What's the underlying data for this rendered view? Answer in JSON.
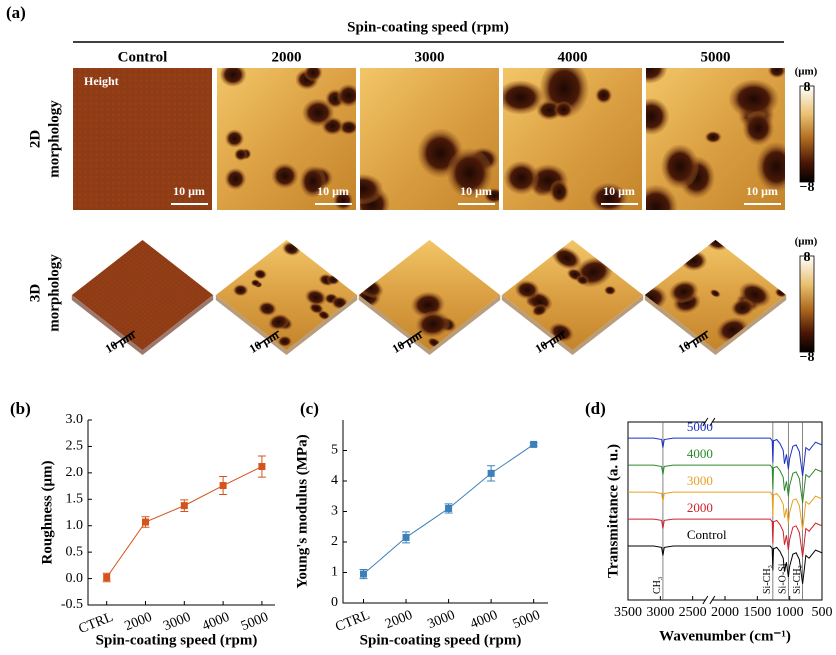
{
  "panel_a": {
    "label": "(a)",
    "title": "Spin-coating speed (rpm)",
    "columns": [
      "Control",
      "2000",
      "3000",
      "4000",
      "5000"
    ],
    "rows": [
      [
        "2D",
        "morphology"
      ],
      [
        "3D",
        "morphology"
      ]
    ],
    "image_label": "Height",
    "scale_bar": "10 μm",
    "colorbar": {
      "unit": "(μm)",
      "lim": [
        -8,
        8
      ],
      "ticks": [
        8,
        {
          "value": -8,
          "label": "−8"
        }
      ]
    }
  },
  "chart_data": [
    {
      "type": "line",
      "panel_label": "(b)",
      "ylabel": "Roughness (μm)",
      "xlabel": "Spin-coating speed (rpm)",
      "categories": [
        "CTRL",
        "2000",
        "3000",
        "4000",
        "5000"
      ],
      "series": [
        {
          "color": "#d4541c",
          "values": [
            0.02,
            1.07,
            1.38,
            1.76,
            2.12
          ],
          "errors": [
            0.08,
            0.1,
            0.11,
            0.17,
            0.2
          ]
        }
      ],
      "ylim": [
        -0.5,
        3.0
      ],
      "yticks": [
        -0.5,
        {
          "value": 0,
          "label": "0.0"
        },
        0.5,
        {
          "value": 1,
          "label": "1.0"
        },
        1.5,
        {
          "value": 2,
          "label": "2.0"
        },
        2.5,
        {
          "value": 3,
          "label": "3.0"
        }
      ]
    },
    {
      "type": "line",
      "panel_label": "(c)",
      "ylabel": "Young's modulus (MPa)",
      "xlabel": "Spin-coating speed (rpm)",
      "categories": [
        "CTRL",
        "2000",
        "3000",
        "4000",
        "5000"
      ],
      "series": [
        {
          "color": "#3b80b9",
          "values": [
            0.95,
            2.15,
            3.1,
            4.25,
            5.2
          ],
          "errors": [
            0.15,
            0.18,
            0.15,
            0.25,
            0.05
          ]
        }
      ],
      "ylim": [
        0,
        6
      ],
      "yticks": [
        0,
        1,
        2,
        3,
        4,
        5
      ]
    },
    {
      "type": "spectrum",
      "panel_label": "(d)",
      "ylabel": "Transmittance (a. u.)",
      "xlabel": "Wavenumber (cm⁻¹)",
      "xlim": [
        3500,
        500
      ],
      "xticks": [
        3500,
        3000,
        2500,
        2000,
        1500,
        1000,
        500
      ],
      "x_break": 2250,
      "ylim": [
        -2,
        4.6
      ],
      "x": [
        3500,
        3100,
        2980,
        2960,
        2940,
        2800,
        2500,
        2000,
        1500,
        1300,
        1270,
        1260,
        1250,
        1200,
        1150,
        1100,
        1080,
        1050,
        1020,
        1000,
        950,
        900,
        850,
        800,
        780,
        750,
        700,
        600,
        500
      ],
      "series": [
        {
          "name": "Control",
          "color": "#000000",
          "values": [
            0,
            0,
            -0.05,
            -0.35,
            -0.05,
            0,
            0,
            0,
            0,
            0,
            -0.1,
            -0.9,
            -0.1,
            -0.05,
            -0.2,
            -0.45,
            -0.95,
            -0.6,
            -1.15,
            -0.75,
            -0.3,
            -0.25,
            -0.5,
            -1.4,
            -1.0,
            -0.35,
            -0.45,
            -0.15,
            -0.25
          ]
        },
        {
          "name": "2000",
          "color": "#d0202a",
          "values": [
            1,
            1,
            0.95,
            0.65,
            0.95,
            1,
            1,
            1,
            1,
            1,
            0.9,
            0.1,
            0.9,
            0.95,
            0.8,
            0.55,
            0.05,
            0.4,
            -0.15,
            0.25,
            0.7,
            0.75,
            0.5,
            -0.4,
            0,
            0.65,
            0.55,
            0.85,
            0.75
          ]
        },
        {
          "name": "3000",
          "color": "#e8a020",
          "values": [
            2,
            2,
            1.95,
            1.65,
            1.95,
            2,
            2,
            2,
            2,
            2,
            1.9,
            1.1,
            1.9,
            1.95,
            1.8,
            1.55,
            1.05,
            1.4,
            0.85,
            1.25,
            1.7,
            1.75,
            1.5,
            0.6,
            1,
            1.65,
            1.55,
            1.85,
            1.75
          ]
        },
        {
          "name": "4000",
          "color": "#2a8a2a",
          "values": [
            3,
            3,
            2.95,
            2.65,
            2.95,
            3,
            3,
            3,
            3,
            3,
            2.9,
            2.1,
            2.9,
            2.95,
            2.8,
            2.55,
            2.05,
            2.4,
            1.85,
            2.25,
            2.7,
            2.75,
            2.5,
            1.6,
            2,
            2.65,
            2.55,
            2.85,
            2.75
          ]
        },
        {
          "name": "5000",
          "color": "#1a30c8",
          "values": [
            4,
            4,
            3.95,
            3.65,
            3.95,
            4,
            4,
            4,
            4,
            4,
            3.9,
            3.1,
            3.9,
            3.95,
            3.8,
            3.55,
            3.05,
            3.4,
            2.85,
            3.25,
            3.7,
            3.75,
            3.5,
            2.6,
            3,
            3.65,
            3.55,
            3.85,
            3.75
          ]
        }
      ],
      "annotations": [
        {
          "x": 2960,
          "text": "CH₃"
        },
        {
          "x": 1260,
          "text": "Si-CH₃"
        },
        {
          "x": 1020,
          "text": "Si-O-Si"
        },
        {
          "x": 800,
          "text": "Si-CH₃"
        }
      ]
    }
  ]
}
